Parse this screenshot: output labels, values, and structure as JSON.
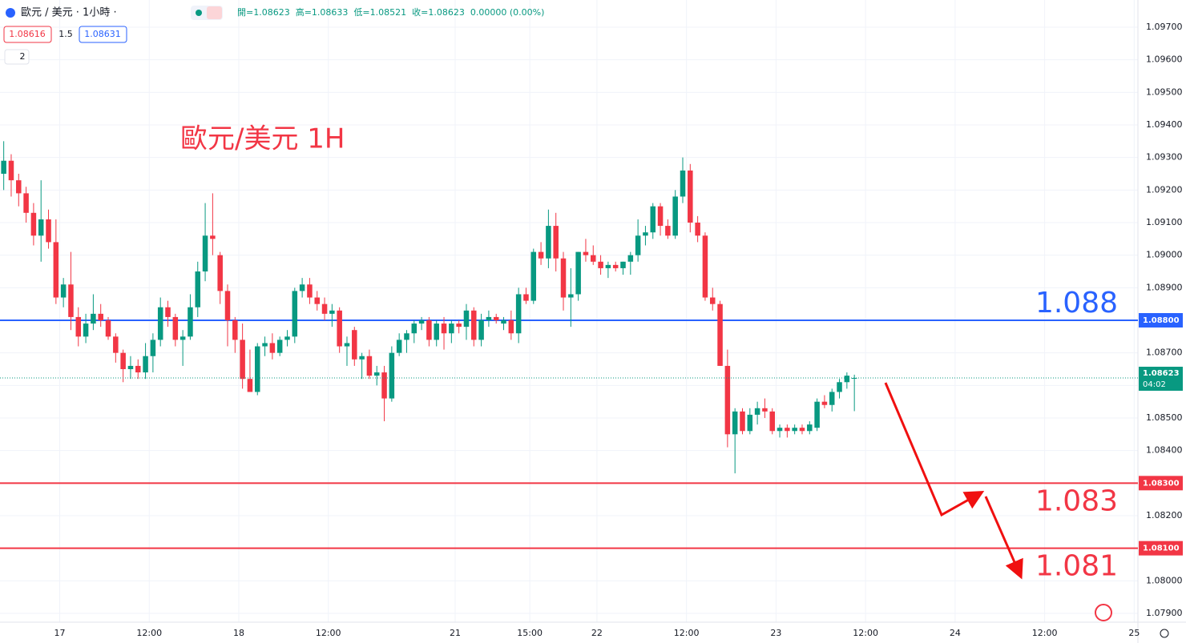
{
  "chart_data": {
    "type": "candlestick",
    "symbol": "歐元 / 美元 · 1小時 ·",
    "ohlc_text": [
      "開=1.08623",
      "高=1.08633",
      "低=1.08521",
      "收=1.08623",
      "0.00000 (0.00%)"
    ],
    "bid": "1.08616",
    "spread": "1.5",
    "ask": "1.08631",
    "indicators": "2",
    "annotation": "歐元/美元 1H",
    "up_color": "#089981",
    "down_color": "#f23645",
    "grid": true,
    "xlim": [
      -0.5,
      152
    ],
    "xticks": [
      {
        "value": 7.5,
        "label": "17"
      },
      {
        "value": 19.5,
        "label": "12:00"
      },
      {
        "value": 31.5,
        "label": "18"
      },
      {
        "value": 43.5,
        "label": "12:00"
      },
      {
        "value": 60.5,
        "label": "21"
      },
      {
        "value": 70.5,
        "label": "15:00"
      },
      {
        "value": 79.5,
        "label": "22"
      },
      {
        "value": 91.5,
        "label": "12:00"
      },
      {
        "value": 103.5,
        "label": "23"
      },
      {
        "value": 115.5,
        "label": "12:00"
      },
      {
        "value": 127.5,
        "label": "24"
      },
      {
        "value": 139.5,
        "label": "12:00"
      },
      {
        "value": 151.5,
        "label": "25"
      }
    ],
    "ylim": [
      1.079,
      1.097
    ],
    "yticks": [
      {
        "value": 1.097,
        "label": "1.09700"
      },
      {
        "value": 1.096,
        "label": "1.09600"
      },
      {
        "value": 1.095,
        "label": "1.09500"
      },
      {
        "value": 1.094,
        "label": "1.09400"
      },
      {
        "value": 1.093,
        "label": "1.09300"
      },
      {
        "value": 1.092,
        "label": "1.09200"
      },
      {
        "value": 1.091,
        "label": "1.09100"
      },
      {
        "value": 1.09,
        "label": "1.09000"
      },
      {
        "value": 1.089,
        "label": "1.08900"
      },
      {
        "value": 1.088,
        "label": "1.08800"
      },
      {
        "value": 1.087,
        "label": "1.08700"
      },
      {
        "value": 1.086,
        "label": "1.08600"
      },
      {
        "value": 1.085,
        "label": "1.08500"
      },
      {
        "value": 1.084,
        "label": "1.08400"
      },
      {
        "value": 1.083,
        "label": "1.08300"
      },
      {
        "value": 1.082,
        "label": "1.08200"
      },
      {
        "value": 1.081,
        "label": "1.08100"
      },
      {
        "value": 1.08,
        "label": "1.08000"
      },
      {
        "value": 1.079,
        "label": "1.07900"
      }
    ],
    "hlines": [
      {
        "value": 1.088,
        "label": "1.088",
        "axis_label": "1.08800",
        "color": "#2962ff"
      },
      {
        "value": 1.083,
        "label": "1.083",
        "axis_label": "1.08300",
        "color": "#f23645"
      },
      {
        "value": 1.081,
        "label": "1.081",
        "axis_label": "1.08100",
        "color": "#f23645"
      }
    ],
    "last_price": {
      "value": 1.08623,
      "label": "1.08623",
      "countdown": "04:02"
    },
    "x": [
      0,
      1,
      2,
      3,
      4,
      5,
      6,
      7,
      8,
      9,
      10,
      11,
      12,
      13,
      14,
      15,
      16,
      17,
      18,
      19,
      20,
      21,
      22,
      23,
      24,
      25,
      26,
      27,
      28,
      29,
      30,
      31,
      32,
      33,
      34,
      35,
      36,
      37,
      38,
      39,
      40,
      41,
      42,
      43,
      44,
      45,
      46,
      47,
      48,
      49,
      50,
      51,
      52,
      53,
      54,
      55,
      56,
      57,
      58,
      59,
      60,
      61,
      62,
      63,
      64,
      65,
      66,
      67,
      68,
      69,
      70,
      71,
      72,
      73,
      74,
      75,
      76,
      77,
      78,
      79,
      80,
      81,
      82,
      83,
      84,
      85,
      86,
      87,
      88,
      89,
      90,
      91,
      92,
      93,
      94,
      95,
      96,
      97,
      98,
      99,
      100,
      101,
      102,
      103,
      104,
      105,
      106,
      107,
      108,
      109,
      110,
      111,
      112,
      113,
      114
    ],
    "open": [
      1.0925,
      1.0929,
      1.0923,
      1.0919,
      1.0913,
      1.0906,
      1.0911,
      1.0904,
      1.0887,
      1.0891,
      1.0881,
      1.0875,
      1.0879,
      1.0882,
      1.088,
      1.0875,
      1.087,
      1.0865,
      1.0866,
      1.0864,
      1.0869,
      1.0874,
      1.0884,
      1.0881,
      1.0874,
      1.0875,
      1.0884,
      1.0895,
      1.0906,
      1.09,
      1.0889,
      1.088,
      1.0874,
      1.0862,
      1.0858,
      1.0872,
      1.0873,
      1.087,
      1.0874,
      1.0875,
      1.0889,
      1.0891,
      1.0887,
      1.0885,
      1.0882,
      1.0883,
      1.0872,
      1.0877,
      1.0868,
      1.0869,
      1.0863,
      1.0864,
      1.0856,
      1.087,
      1.0874,
      1.0876,
      1.0879,
      1.088,
      1.0874,
      1.0879,
      1.0876,
      1.0879,
      1.0878,
      1.0883,
      1.0874,
      1.088,
      1.0881,
      1.0879,
      1.088,
      1.0876,
      1.0888,
      1.0886,
      1.0901,
      1.0899,
      1.0909,
      1.0899,
      1.0887,
      1.0888,
      1.0901,
      1.09,
      1.0898,
      1.0896,
      1.0897,
      1.0896,
      1.0898,
      1.09,
      1.0906,
      1.0907,
      1.0915,
      1.0909,
      1.0906,
      1.0918,
      1.0926,
      1.091,
      1.0906,
      1.0887,
      1.0885,
      1.0866,
      1.0845,
      1.0852,
      1.0846,
      1.0851,
      1.0853,
      1.0852,
      1.0846,
      1.0847,
      1.0846,
      1.0847,
      1.0846,
      1.0847,
      1.0855,
      1.0854,
      1.0858,
      1.0861,
      1.08623
    ],
    "high": [
      1.0935,
      1.0931,
      1.0925,
      1.0921,
      1.0916,
      1.0923,
      1.0914,
      1.0911,
      1.0893,
      1.0901,
      1.0884,
      1.0882,
      1.0888,
      1.0885,
      1.0881,
      1.0876,
      1.0871,
      1.0869,
      1.0868,
      1.0873,
      1.0876,
      1.0887,
      1.0886,
      1.0882,
      1.0877,
      1.0888,
      1.0898,
      1.0916,
      1.0919,
      1.0901,
      1.0891,
      1.0881,
      1.0879,
      1.0871,
      1.0873,
      1.0875,
      1.0876,
      1.0875,
      1.0877,
      1.089,
      1.0893,
      1.0893,
      1.0889,
      1.0887,
      1.0885,
      1.0884,
      1.0875,
      1.0878,
      1.087,
      1.0871,
      1.0866,
      1.0866,
      1.0872,
      1.0876,
      1.0877,
      1.088,
      1.0881,
      1.0881,
      1.088,
      1.0881,
      1.088,
      1.088,
      1.0885,
      1.0884,
      1.0882,
      1.0883,
      1.0882,
      1.0881,
      1.0883,
      1.089,
      1.089,
      1.0902,
      1.0904,
      1.0914,
      1.0913,
      1.0901,
      1.0896,
      1.0901,
      1.0905,
      1.0903,
      1.09,
      1.0898,
      1.0898,
      1.0898,
      1.0901,
      1.0911,
      1.0909,
      1.0916,
      1.0916,
      1.0911,
      1.092,
      1.093,
      1.0928,
      1.0912,
      1.0907,
      1.089,
      1.0886,
      1.0871,
      1.0853,
      1.0853,
      1.0853,
      1.0855,
      1.0856,
      1.0853,
      1.0848,
      1.0848,
      1.0848,
      1.0848,
      1.0849,
      1.0856,
      1.0857,
      1.0859,
      1.0862,
      1.0864,
      1.08633
    ],
    "low": [
      1.092,
      1.0918,
      1.0915,
      1.091,
      1.0903,
      1.0898,
      1.0902,
      1.0885,
      1.0884,
      1.0877,
      1.0872,
      1.0873,
      1.0877,
      1.0878,
      1.0874,
      1.0867,
      1.0861,
      1.0862,
      1.0862,
      1.0862,
      1.0864,
      1.0872,
      1.0878,
      1.0872,
      1.0866,
      1.0874,
      1.0881,
      1.0892,
      1.09,
      1.0885,
      1.0872,
      1.087,
      1.0859,
      1.0858,
      1.0857,
      1.0869,
      1.0868,
      1.0869,
      1.0872,
      1.0873,
      1.0887,
      1.0885,
      1.0883,
      1.088,
      1.0878,
      1.087,
      1.0866,
      1.0866,
      1.0862,
      1.0862,
      1.086,
      1.0849,
      1.0855,
      1.0869,
      1.087,
      1.0873,
      1.0877,
      1.0872,
      1.0872,
      1.0871,
      1.0873,
      1.0876,
      1.0874,
      1.0872,
      1.0872,
      1.0878,
      1.0879,
      1.0877,
      1.0874,
      1.0873,
      1.0885,
      1.0885,
      1.0897,
      1.0896,
      1.0895,
      1.0883,
      1.0878,
      1.0886,
      1.0898,
      1.0897,
      1.0894,
      1.0893,
      1.0895,
      1.0894,
      1.0894,
      1.0898,
      1.0903,
      1.0905,
      1.0906,
      1.0905,
      1.0905,
      1.0916,
      1.0907,
      1.0904,
      1.0886,
      1.0883,
      1.0866,
      1.0841,
      1.0833,
      1.0845,
      1.0845,
      1.0848,
      1.085,
      1.0845,
      1.0844,
      1.0844,
      1.0845,
      1.0845,
      1.0845,
      1.0846,
      1.0853,
      1.0852,
      1.0856,
      1.0859,
      1.08521
    ],
    "close": [
      1.0929,
      1.0923,
      1.0919,
      1.0913,
      1.0906,
      1.0911,
      1.0904,
      1.0887,
      1.0891,
      1.0881,
      1.0875,
      1.0879,
      1.0882,
      1.088,
      1.0875,
      1.087,
      1.0865,
      1.0866,
      1.0864,
      1.0869,
      1.0874,
      1.0884,
      1.0881,
      1.0874,
      1.0875,
      1.0884,
      1.0895,
      1.0906,
      1.0905,
      1.0889,
      1.088,
      1.0874,
      1.0862,
      1.0858,
      1.0872,
      1.0873,
      1.087,
      1.0874,
      1.0875,
      1.0889,
      1.0891,
      1.0887,
      1.0885,
      1.0882,
      1.0883,
      1.0872,
      1.0873,
      1.0868,
      1.0869,
      1.0863,
      1.0864,
      1.0856,
      1.087,
      1.0874,
      1.0876,
      1.0879,
      1.088,
      1.0874,
      1.0879,
      1.0876,
      1.0879,
      1.0878,
      1.0883,
      1.0874,
      1.088,
      1.0881,
      1.088,
      1.088,
      1.0876,
      1.0888,
      1.0886,
      1.0901,
      1.0899,
      1.0909,
      1.0899,
      1.0887,
      1.0888,
      1.0901,
      1.09,
      1.0898,
      1.0896,
      1.0897,
      1.0896,
      1.0898,
      1.09,
      1.0906,
      1.0907,
      1.0915,
      1.0909,
      1.0906,
      1.0918,
      1.0926,
      1.091,
      1.0906,
      1.0887,
      1.0885,
      1.0866,
      1.0845,
      1.0852,
      1.0846,
      1.0851,
      1.0853,
      1.0852,
      1.0846,
      1.0847,
      1.0846,
      1.0847,
      1.0846,
      1.0848,
      1.0855,
      1.0854,
      1.0858,
      1.0861,
      1.0863,
      1.08623
    ]
  }
}
